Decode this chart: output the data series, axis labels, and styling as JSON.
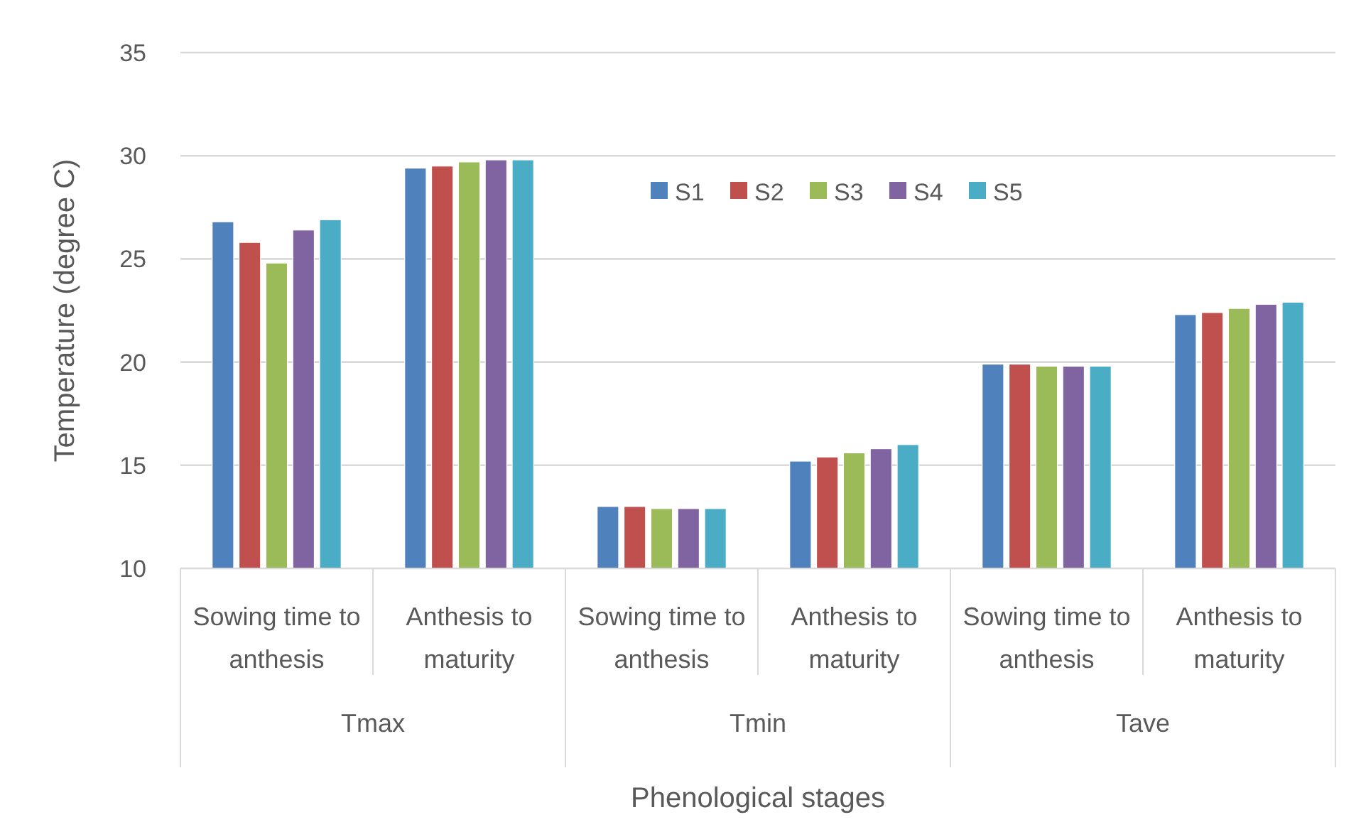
{
  "chart_data": {
    "type": "bar",
    "xlabel": "Phenological stages",
    "ylabel": "Temperature (degree C)",
    "categories": [
      "Sowing time to anthesis",
      "Anthesis to maturity",
      "Sowing time to anthesis",
      "Anthesis to maturity",
      "Sowing time to anthesis",
      "Anthesis to maturity"
    ],
    "annotations": [
      "Tmax",
      "Tmin",
      "Tave"
    ],
    "series": [
      {
        "name": "S1",
        "color": "#4f81bd",
        "values": [
          26.8,
          29.4,
          13.0,
          15.2,
          19.9,
          22.3
        ]
      },
      {
        "name": "S2",
        "color": "#c0504d",
        "values": [
          25.8,
          29.5,
          13.0,
          15.4,
          19.9,
          22.4
        ]
      },
      {
        "name": "S3",
        "color": "#9bbb59",
        "values": [
          24.8,
          29.7,
          12.9,
          15.6,
          19.8,
          22.6
        ]
      },
      {
        "name": "S4",
        "color": "#8064a2",
        "values": [
          26.4,
          29.8,
          12.9,
          15.8,
          19.8,
          22.8
        ]
      },
      {
        "name": "S5",
        "color": "#4bacc6",
        "values": [
          26.9,
          29.8,
          12.9,
          16.0,
          19.8,
          22.9
        ]
      }
    ],
    "ylim": [
      10,
      35
    ],
    "yticks": [
      10,
      15,
      20,
      25,
      30,
      35
    ],
    "grid": "y",
    "legend": "top"
  }
}
